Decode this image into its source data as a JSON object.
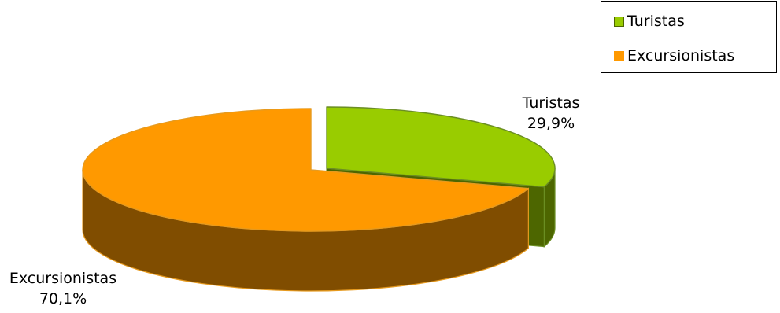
{
  "chart_data": {
    "type": "pie",
    "style": "3d-exploded",
    "title": "",
    "legend_position": "top-right",
    "slices": [
      {
        "label": "Turistas",
        "value": 29.9,
        "display": "29,9%",
        "color": "#99CC00",
        "side_color": "#4D6600",
        "edge_color": "#6B8E23"
      },
      {
        "label": "Excursionistas",
        "value": 70.1,
        "display": "70,1%",
        "color": "#FF9900",
        "side_color": "#804D00",
        "edge_color": "#E69A1F"
      }
    ]
  }
}
